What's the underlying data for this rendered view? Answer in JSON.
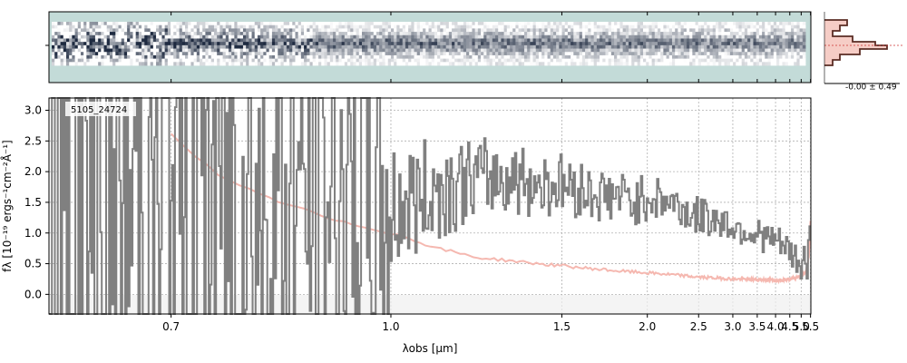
{
  "chart_data": [
    {
      "type": "heatmap",
      "panel": "2d-spectrum",
      "description_colormap": [
        "#ffffff",
        "#1e2a40"
      ],
      "background_color": "#c3dbd8",
      "rows": 13,
      "row_profile": [
        0.05,
        0.1,
        0.2,
        0.35,
        0.55,
        0.85,
        1.0,
        0.85,
        0.55,
        0.35,
        0.2,
        0.1,
        0.05
      ]
    },
    {
      "type": "line",
      "panel": "spatial-profile",
      "annotation": "-0.00 ± 0.49",
      "colors": {
        "profile": "#5a2c24",
        "fill": "#f5c8c0"
      }
    },
    {
      "type": "line",
      "panel": "1d-spectrum",
      "object_label": "5105_24724",
      "xlabel": "λobs [μm]",
      "ylabel": "fλ [10⁻¹⁹ ergs⁻¹cm⁻²Å⁻¹]",
      "xscale": "reciprocal",
      "xlim": [
        0.6,
        5.52
      ],
      "ylim": [
        -0.32,
        3.2
      ],
      "xticks": [
        "0.7",
        "1.0",
        "1.5",
        "2.0",
        "2.5",
        "3.0",
        "3.5",
        "4.0",
        "4.5",
        "5.0",
        "5.5"
      ],
      "xtick_values": [
        0.7,
        1.0,
        1.5,
        2.0,
        2.5,
        3.0,
        3.5,
        4.0,
        4.5,
        5.0,
        5.5
      ],
      "yticks": [
        "0.0",
        "0.5",
        "1.0",
        "1.5",
        "2.0",
        "2.5",
        "3.0"
      ],
      "ytick_values": [
        0.0,
        0.5,
        1.0,
        1.5,
        2.0,
        2.5,
        3.0
      ],
      "grid": true,
      "series": [
        {
          "role": "flux",
          "color": "#808080",
          "x": [
            0.6,
            0.7,
            0.75,
            0.8,
            0.85,
            0.9,
            1.0,
            1.1,
            1.2,
            1.3,
            1.4,
            1.5,
            1.6,
            1.7,
            1.8,
            1.9,
            2.0,
            2.2,
            2.4,
            2.6,
            2.8,
            3.0,
            3.2,
            3.4,
            3.6,
            3.8,
            4.0,
            4.2,
            4.4,
            4.6,
            4.8,
            5.0,
            5.2,
            5.3,
            5.4,
            5.5
          ],
          "y": [
            0.8,
            1.6,
            1.8,
            1.5,
            1.6,
            1.7,
            1.4,
            1.7,
            1.9,
            1.9,
            1.8,
            1.8,
            1.7,
            1.6,
            1.6,
            1.5,
            1.6,
            1.5,
            1.3,
            1.25,
            1.2,
            1.1,
            1.05,
            1.0,
            0.95,
            0.9,
            0.85,
            0.8,
            0.7,
            0.6,
            0.55,
            0.5,
            0.55,
            0.6,
            0.9,
            1.2
          ]
        },
        {
          "role": "error",
          "color": "#f5b8b0",
          "x": [
            0.7,
            0.75,
            0.8,
            0.85,
            0.9,
            1.0,
            1.1,
            1.2,
            1.4,
            1.6,
            1.8,
            2.0,
            2.5,
            3.0,
            3.5,
            4.0,
            4.5,
            5.0,
            5.2,
            5.3,
            5.4,
            5.5
          ],
          "y": [
            2.6,
            1.9,
            1.6,
            1.4,
            1.2,
            1.0,
            0.75,
            0.6,
            0.5,
            0.43,
            0.38,
            0.35,
            0.28,
            0.25,
            0.24,
            0.23,
            0.25,
            0.3,
            0.35,
            0.45,
            0.6,
            1.2
          ]
        }
      ]
    }
  ]
}
